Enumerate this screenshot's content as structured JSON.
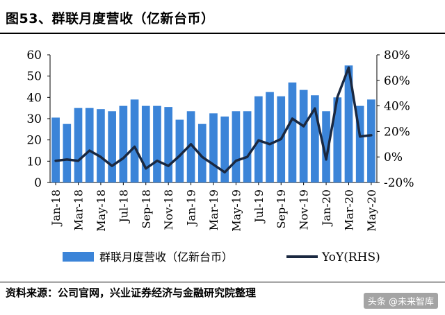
{
  "header": {
    "title": "图53、群联月度营收（亿新台币）"
  },
  "footer": {
    "source": "资料来源：公司官网，兴业证券经济与金融研究院整理",
    "watermark": "头条 @未来智库"
  },
  "colors": {
    "bar": "#3b84d8",
    "line": "#1a2840"
  },
  "chart_data": {
    "type": "bar",
    "title": "",
    "xlabel": "",
    "ylabel": "",
    "ylim": [
      0,
      60
    ],
    "y2lim": [
      -20,
      80
    ],
    "yticks": [
      "0",
      "10",
      "20",
      "30",
      "40",
      "50",
      "60"
    ],
    "y2ticks": [
      "-20%",
      "0%",
      "20%",
      "40%",
      "60%",
      "80%"
    ],
    "grid": false,
    "legend_position": "bottom",
    "x": [
      "Jan-18",
      "Feb-18",
      "Mar-18",
      "Apr-18",
      "May-18",
      "Jun-18",
      "Jul-18",
      "Aug-18",
      "Sep-18",
      "Oct-18",
      "Nov-18",
      "Dec-18",
      "Jan-19",
      "Feb-19",
      "Mar-19",
      "Apr-19",
      "May-19",
      "Jun-19",
      "Jul-19",
      "Aug-19",
      "Sep-19",
      "Oct-19",
      "Nov-19",
      "Dec-19",
      "Jan-20",
      "Feb-20",
      "Mar-20",
      "Apr-20",
      "May-20"
    ],
    "xticklabels": [
      "Jan-18",
      "Mar-18",
      "May-18",
      "Jul-18",
      "Sep-18",
      "Nov-18",
      "Jan-19",
      "Mar-19",
      "May-19",
      "Jul-19",
      "Sep-19",
      "Nov-19",
      "Jan-20",
      "Mar-20",
      "May-20"
    ],
    "series": [
      {
        "name": "群联月度营收（亿新台币）",
        "type": "bar",
        "axis": "left",
        "values": [
          30.5,
          27.5,
          35,
          35,
          34.5,
          33.5,
          36,
          39,
          36,
          36,
          35.5,
          29.5,
          33.5,
          27.5,
          32.5,
          31,
          33.5,
          33.5,
          40.5,
          42.5,
          40.5,
          47,
          43.5,
          41,
          33.5,
          40,
          55,
          36,
          39
        ]
      },
      {
        "name": "YoY(RHS)",
        "type": "line",
        "axis": "right",
        "values": [
          -3,
          -2,
          -3,
          5,
          0,
          -7,
          -1,
          8,
          -9,
          -3,
          -7,
          1,
          10,
          0,
          -6,
          -12,
          -3,
          0,
          13,
          10,
          14,
          30,
          24,
          38,
          -2,
          47,
          70,
          16,
          17
        ]
      }
    ]
  }
}
